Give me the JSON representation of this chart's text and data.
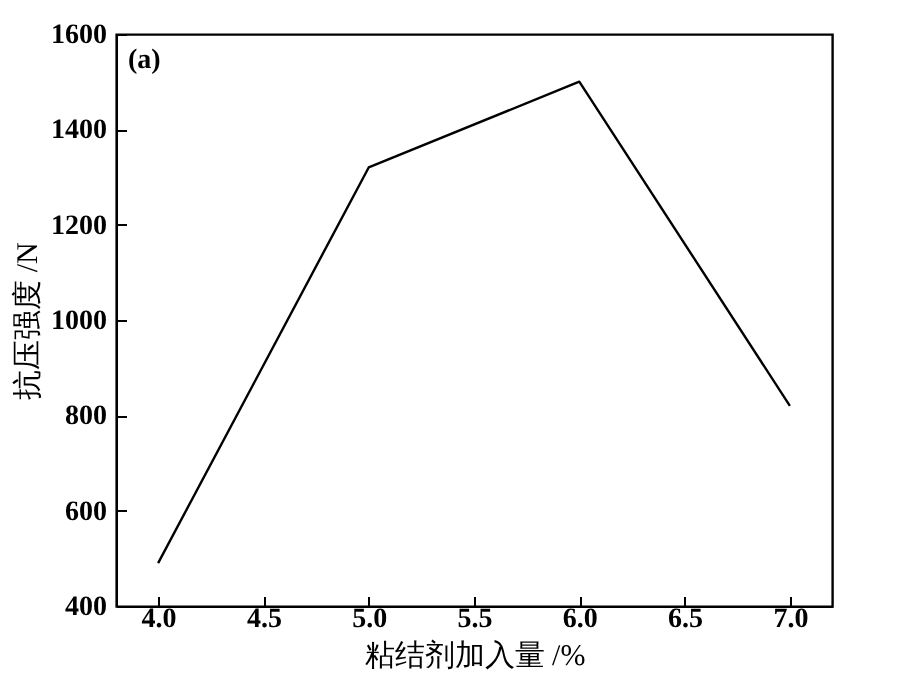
{
  "chart_data": {
    "type": "line",
    "xlabel": "粘结剂加入量 /%",
    "ylabel": "抗压强度 /N",
    "annotations": [
      "(a)"
    ],
    "x": [
      4.0,
      5.0,
      6.0,
      7.0
    ],
    "series": [
      {
        "color": "#000000",
        "values": [
          490,
          1320,
          1500,
          820
        ]
      }
    ],
    "xlim": [
      3.8,
      7.2
    ],
    "xticks": [
      {
        "value": 4,
        "label": "4.0"
      },
      {
        "value": 4.5,
        "label": "4.5"
      },
      {
        "value": 5,
        "label": "5.0"
      },
      {
        "value": 5.5,
        "label": "5.5"
      },
      {
        "value": 6,
        "label": "6.0"
      },
      {
        "value": 6.5,
        "label": "6.5"
      },
      {
        "value": 7,
        "label": "7.0"
      }
    ],
    "ylim": [
      400,
      1600
    ],
    "yticks": [
      400,
      600,
      800,
      1000,
      1200,
      1400,
      1600
    ],
    "grid": false,
    "marker": "none",
    "line_style": "solid"
  }
}
